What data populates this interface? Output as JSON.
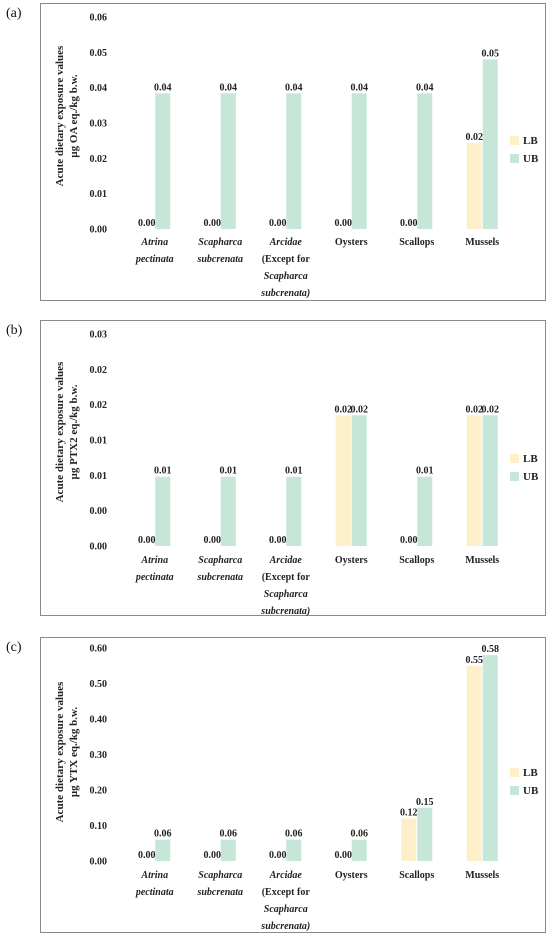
{
  "colors": {
    "LB": "#fdefc9",
    "UB": "#c6e6d8",
    "frame": "#8a8a8a"
  },
  "chart_data": [
    {
      "type": "bar",
      "panel": "(a)",
      "ylabel": [
        "Acute dietary exposure values",
        "µg OA eq./kg b.w."
      ],
      "yticks": [
        "0.06",
        "0.05",
        "0.04",
        "0.03",
        "0.02",
        "0.01",
        "0.00"
      ],
      "ylim": [
        0,
        0.06
      ],
      "categories": [
        {
          "lines": [
            "Atrina",
            "pectinata"
          ],
          "italic": [
            true,
            true
          ]
        },
        {
          "lines": [
            "Scapharca",
            "subcrenata"
          ],
          "italic": [
            true,
            true
          ]
        },
        {
          "lines": [
            "Arcidae",
            "(Except for",
            "Scapharca",
            "subcrenata)"
          ],
          "italic": [
            true,
            false,
            true,
            true
          ]
        },
        {
          "lines": [
            "Oysters"
          ],
          "italic": [
            false
          ]
        },
        {
          "lines": [
            "Scallops"
          ],
          "italic": [
            false
          ]
        },
        {
          "lines": [
            "Mussels"
          ],
          "italic": [
            false
          ]
        }
      ],
      "series": [
        {
          "name": "LB",
          "values": [
            0.0,
            0.0,
            0.0,
            0.0,
            0.0,
            0.0243
          ],
          "labels": [
            "0.00",
            "0.00",
            "0.00",
            "0.00",
            "0.00",
            "0.02"
          ]
        },
        {
          "name": "UB",
          "values": [
            0.0384,
            0.0384,
            0.0384,
            0.0384,
            0.0384,
            0.048
          ],
          "labels": [
            "0.04",
            "0.04",
            "0.04",
            "0.04",
            "0.04",
            "0.05"
          ]
        }
      ],
      "legend": "right"
    },
    {
      "type": "bar",
      "panel": "(b)",
      "ylabel": [
        "Acute dietary exposure values",
        "µg PTX2 eq./kg b.w."
      ],
      "yticks": [
        "0.03",
        "0.02",
        "0.02",
        "0.01",
        "0.01",
        "0.00",
        "0.00"
      ],
      "ylim": [
        0,
        0.03
      ],
      "categories": [
        {
          "lines": [
            "Atrina",
            "pectinata"
          ],
          "italic": [
            true,
            true
          ]
        },
        {
          "lines": [
            "Scapharca",
            "subcrenata"
          ],
          "italic": [
            true,
            true
          ]
        },
        {
          "lines": [
            "Arcidae",
            "(Except for",
            "Scapharca",
            "subcrenata)"
          ],
          "italic": [
            true,
            false,
            true,
            true
          ]
        },
        {
          "lines": [
            "Oysters"
          ],
          "italic": [
            false
          ]
        },
        {
          "lines": [
            "Scallops"
          ],
          "italic": [
            false
          ]
        },
        {
          "lines": [
            "Mussels"
          ],
          "italic": [
            false
          ]
        }
      ],
      "series": [
        {
          "name": "LB",
          "values": [
            0.0,
            0.0,
            0.0,
            0.0185,
            0.0,
            0.0185
          ],
          "labels": [
            "0.00",
            "0.00",
            "0.00",
            "0.02",
            "0.00",
            "0.02"
          ]
        },
        {
          "name": "UB",
          "values": [
            0.0098,
            0.0098,
            0.0098,
            0.0185,
            0.0098,
            0.0185
          ],
          "labels": [
            "0.01",
            "0.01",
            "0.01",
            "0.02",
            "0.01",
            "0.02"
          ]
        }
      ],
      "legend": "right"
    },
    {
      "type": "bar",
      "panel": "(c)",
      "ylabel": [
        "Acute dietary exposure values",
        "µg YTX eq./kg b.w."
      ],
      "yticks": [
        "0.60",
        "0.50",
        "0.40",
        "0.30",
        "0.20",
        "0.10",
        "0.00"
      ],
      "ylim": [
        0,
        0.6
      ],
      "categories": [
        {
          "lines": [
            "Atrina",
            "pectinata"
          ],
          "italic": [
            true,
            true
          ]
        },
        {
          "lines": [
            "Scapharca",
            "subcrenata"
          ],
          "italic": [
            true,
            true
          ]
        },
        {
          "lines": [
            "Arcidae",
            "(Except for",
            "Scapharca",
            "subcrenata)"
          ],
          "italic": [
            true,
            false,
            true,
            true
          ]
        },
        {
          "lines": [
            "Oysters"
          ],
          "italic": [
            false
          ]
        },
        {
          "lines": [
            "Scallops"
          ],
          "italic": [
            false
          ]
        },
        {
          "lines": [
            "Mussels"
          ],
          "italic": [
            false
          ]
        }
      ],
      "series": [
        {
          "name": "LB",
          "values": [
            0.0,
            0.0,
            0.0,
            0.0,
            0.12,
            0.55
          ],
          "labels": [
            "0.00",
            "0.00",
            "0.00",
            "0.00",
            "0.12",
            "0.55"
          ]
        },
        {
          "name": "UB",
          "values": [
            0.06,
            0.06,
            0.06,
            0.06,
            0.15,
            0.58
          ],
          "labels": [
            "0.06",
            "0.06",
            "0.06",
            "0.06",
            "0.15",
            "0.58"
          ]
        }
      ],
      "legend": "right"
    }
  ]
}
